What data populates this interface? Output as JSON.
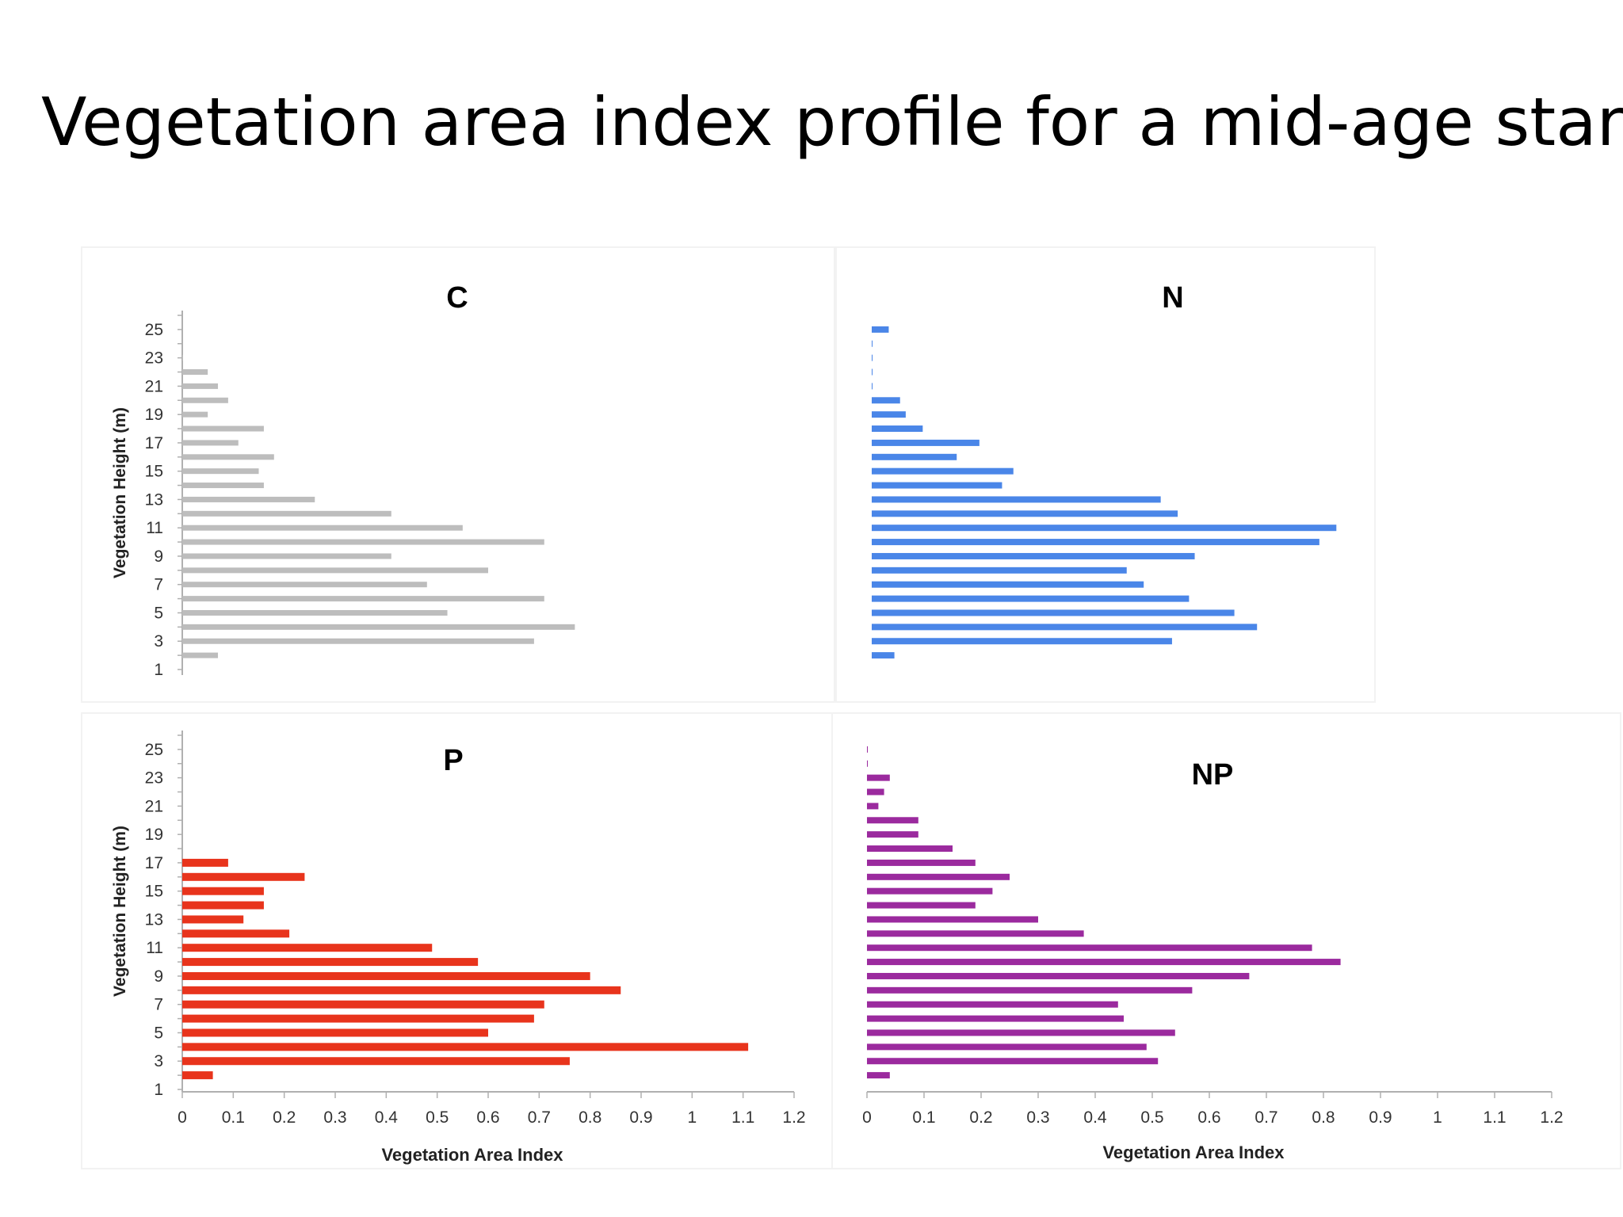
{
  "slide": {
    "title": "Vegetation area index profile for a mid-age stand"
  },
  "chart_data": [
    {
      "type": "bar",
      "orientation": "horizontal",
      "title": "C",
      "ylabel": "Vegetation Height (m)",
      "xlabel": "",
      "xlim": [
        0,
        1.2
      ],
      "ylim": [
        1,
        26
      ],
      "ytick_labels": [
        "1",
        "3",
        "5",
        "7",
        "9",
        "11",
        "13",
        "15",
        "17",
        "19",
        "21",
        "23",
        "25"
      ],
      "xtick_labels": [],
      "grid": false,
      "color": "#bdbdbd",
      "categories": [
        2,
        3,
        4,
        5,
        6,
        7,
        8,
        9,
        10,
        11,
        12,
        13,
        14,
        15,
        16,
        17,
        18,
        19,
        20,
        21,
        22,
        23
      ],
      "values": [
        0.07,
        0.69,
        0.77,
        0.52,
        0.71,
        0.48,
        0.6,
        0.41,
        0.71,
        0.55,
        0.41,
        0.26,
        0.16,
        0.15,
        0.18,
        0.11,
        0.16,
        0.05,
        0.09,
        0.07,
        0.05,
        0.0
      ]
    },
    {
      "type": "bar",
      "orientation": "horizontal",
      "title": "N",
      "ylabel": "",
      "xlabel": "",
      "xlim": [
        0,
        1.2
      ],
      "ylim": [
        1,
        26
      ],
      "ytick_labels": [],
      "xtick_labels": [],
      "grid": false,
      "color": "#4a86e8",
      "categories": [
        2,
        3,
        4,
        5,
        6,
        7,
        8,
        9,
        10,
        11,
        12,
        13,
        14,
        15,
        16,
        17,
        18,
        19,
        20,
        21,
        22,
        23,
        24,
        25
      ],
      "values": [
        0.04,
        0.53,
        0.68,
        0.64,
        0.56,
        0.48,
        0.45,
        0.57,
        0.79,
        0.82,
        0.54,
        0.51,
        0.23,
        0.25,
        0.15,
        0.19,
        0.09,
        0.06,
        0.05,
        0.0,
        0.0,
        0.0,
        0.0,
        0.03
      ]
    },
    {
      "type": "bar",
      "orientation": "horizontal",
      "title": "P",
      "ylabel": "Vegetation Height (m)",
      "xlabel": "Vegetation Area Index",
      "xlim": [
        0,
        1.2
      ],
      "ylim": [
        1,
        26
      ],
      "ytick_labels": [
        "1",
        "3",
        "5",
        "7",
        "9",
        "11",
        "13",
        "15",
        "17",
        "19",
        "21",
        "23",
        "25"
      ],
      "xtick_labels": [
        "0",
        "0.1",
        "0.2",
        "0.3",
        "0.4",
        "0.5",
        "0.6",
        "0.7",
        "0.8",
        "0.9",
        "1",
        "1.1",
        "1.2"
      ],
      "grid": false,
      "color": "#e8341c",
      "categories": [
        2,
        3,
        4,
        5,
        6,
        7,
        8,
        9,
        10,
        11,
        12,
        13,
        14,
        15,
        16,
        17
      ],
      "values": [
        0.06,
        0.76,
        1.11,
        0.6,
        0.69,
        0.71,
        0.86,
        0.8,
        0.58,
        0.49,
        0.21,
        0.12,
        0.16,
        0.16,
        0.24,
        0.09
      ]
    },
    {
      "type": "bar",
      "orientation": "horizontal",
      "title": "NP",
      "ylabel": "",
      "xlabel": "Vegetation Area Index",
      "xlim": [
        0,
        1.2
      ],
      "ylim": [
        1,
        26
      ],
      "ytick_labels": [],
      "xtick_labels": [
        "0",
        "0.1",
        "0.2",
        "0.3",
        "0.4",
        "0.5",
        "0.6",
        "0.7",
        "0.8",
        "0.9",
        "1",
        "1.1",
        "1.2"
      ],
      "grid": false,
      "color": "#9b2a9e",
      "categories": [
        2,
        3,
        4,
        5,
        6,
        7,
        8,
        9,
        10,
        11,
        12,
        13,
        14,
        15,
        16,
        17,
        18,
        19,
        20,
        21,
        22,
        23,
        24,
        25
      ],
      "values": [
        0.04,
        0.51,
        0.49,
        0.54,
        0.45,
        0.44,
        0.57,
        0.67,
        0.83,
        0.78,
        0.38,
        0.3,
        0.19,
        0.22,
        0.25,
        0.19,
        0.15,
        0.09,
        0.09,
        0.02,
        0.03,
        0.04,
        0.0,
        0.0
      ]
    }
  ]
}
